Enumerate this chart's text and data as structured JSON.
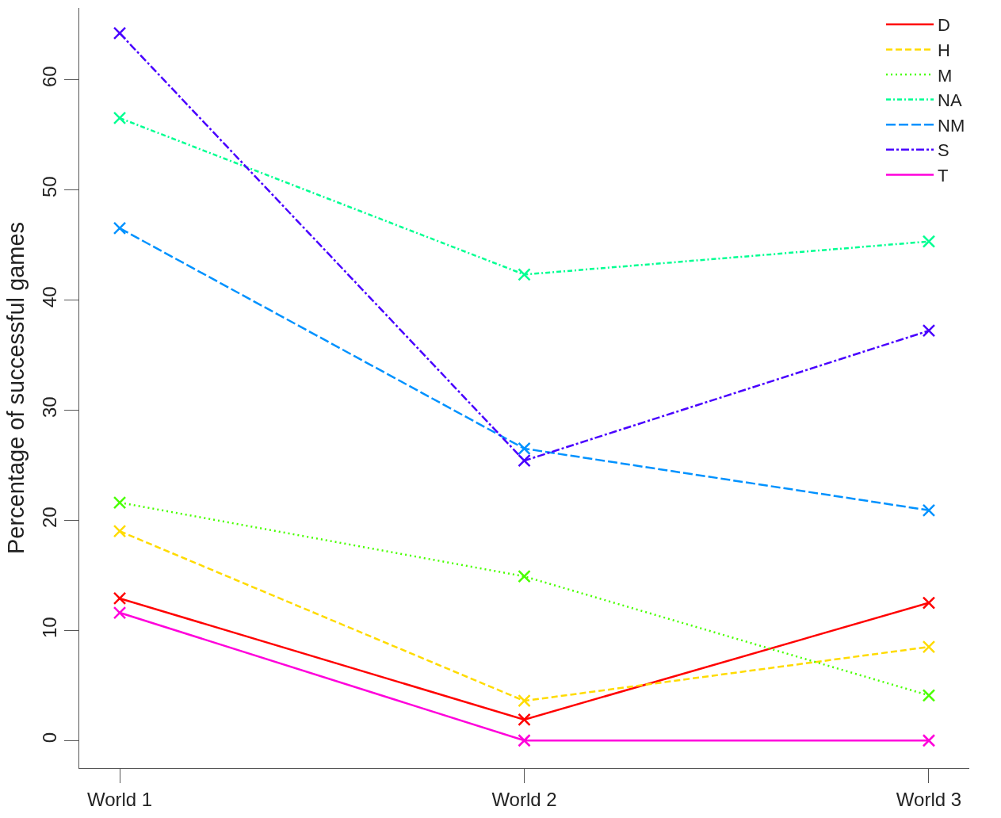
{
  "chart_data": {
    "type": "line",
    "ylabel": "Percentage of successful games",
    "categories": [
      "World 1",
      "World 2",
      "World 3"
    ],
    "ylim": [
      -2.5,
      66.5
    ],
    "yticks": [
      0,
      10,
      20,
      30,
      40,
      50,
      60
    ],
    "marker": "cross",
    "legend": "top right",
    "series": [
      {
        "name": "D",
        "color": "#ff0000",
        "line_style": "solid",
        "values": [
          12.9,
          1.9,
          12.5
        ]
      },
      {
        "name": "H",
        "color": "#ffdb00",
        "line_style": "dashed",
        "values": [
          19.0,
          3.6,
          8.5
        ]
      },
      {
        "name": "M",
        "color": "#49ff00",
        "line_style": "dotted",
        "values": [
          21.6,
          14.9,
          4.1
        ]
      },
      {
        "name": "NA",
        "color": "#00ff92",
        "line_style": "dashdot",
        "values": [
          56.5,
          42.3,
          45.3
        ]
      },
      {
        "name": "NM",
        "color": "#0092ff",
        "line_style": "longdash",
        "values": [
          46.5,
          26.5,
          20.9
        ]
      },
      {
        "name": "S",
        "color": "#4900ff",
        "line_style": "longdashdot",
        "values": [
          64.2,
          25.4,
          37.2
        ]
      },
      {
        "name": "T",
        "color": "#ff00db",
        "line_style": "solid",
        "values": [
          11.6,
          0,
          0
        ]
      }
    ]
  }
}
